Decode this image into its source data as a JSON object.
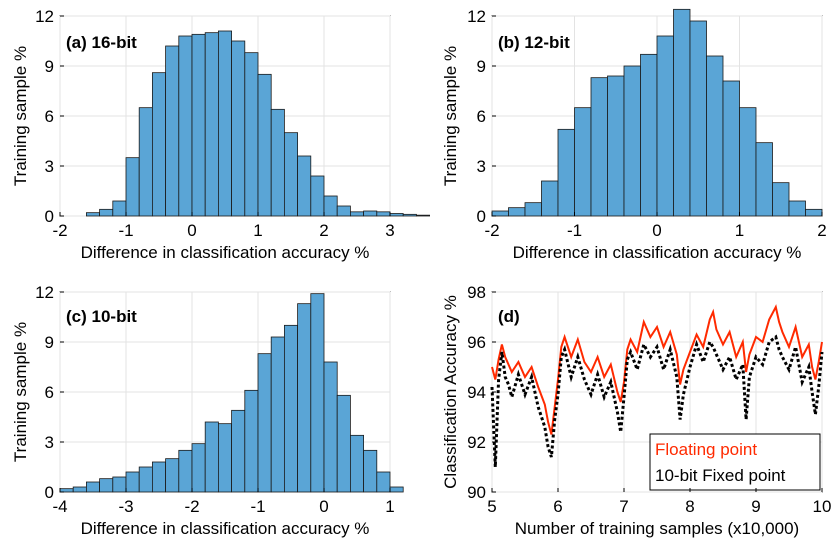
{
  "chart_data": [
    {
      "type": "bar",
      "panel_label": "(a) 16-bit",
      "xlabel": "Difference in classification accuracy %",
      "ylabel": "Training sample %",
      "xlim": [
        -2,
        3
      ],
      "ylim": [
        0,
        12
      ],
      "xticks": [
        "-2",
        "-1",
        "0",
        "1",
        "2",
        "3"
      ],
      "yticks": [
        "0",
        "3",
        "6",
        "9",
        "12"
      ],
      "bin_width": 0.2,
      "bin_start": -1.6,
      "values": [
        0.2,
        0.4,
        0.9,
        3.5,
        6.5,
        8.6,
        10.2,
        10.8,
        10.9,
        11.0,
        11.1,
        10.5,
        9.8,
        8.5,
        6.4,
        5.0,
        3.6,
        2.4,
        1.2,
        0.6,
        0.25,
        0.3,
        0.25,
        0.15,
        0.1,
        0.05
      ],
      "bar_color": "#5aa5d6",
      "grid": true
    },
    {
      "type": "bar",
      "panel_label": "(b) 12-bit",
      "xlabel": "Difference in classification accuracy %",
      "ylabel": "Training sample %",
      "xlim": [
        -2,
        2
      ],
      "ylim": [
        0,
        12
      ],
      "xticks": [
        "-2",
        "-1",
        "0",
        "1",
        "2"
      ],
      "yticks": [
        "0",
        "3",
        "6",
        "9",
        "12"
      ],
      "bin_width": 0.2,
      "bin_start": -2.0,
      "values": [
        0.3,
        0.5,
        0.8,
        2.1,
        5.2,
        6.5,
        8.3,
        8.4,
        9.0,
        9.7,
        10.8,
        12.4,
        11.7,
        9.6,
        8.1,
        6.5,
        4.4,
        2.0,
        0.9,
        0.4
      ],
      "bar_color": "#5aa5d6",
      "grid": true
    },
    {
      "type": "bar",
      "panel_label": "(c) 10-bit",
      "xlabel": "Difference in classification accuracy %",
      "ylabel": "Training sample %",
      "xlim": [
        -4,
        1
      ],
      "ylim": [
        0,
        12
      ],
      "xticks": [
        "-4",
        "-3",
        "-2",
        "-1",
        "0",
        "1"
      ],
      "yticks": [
        "0",
        "3",
        "6",
        "9",
        "12"
      ],
      "bin_width": 0.2,
      "bin_start": -4.0,
      "values": [
        0.2,
        0.3,
        0.6,
        0.8,
        0.9,
        1.2,
        1.5,
        1.8,
        2.0,
        2.5,
        2.9,
        4.2,
        4.1,
        4.9,
        6.1,
        8.3,
        9.3,
        10.0,
        11.3,
        11.9,
        7.8,
        5.8,
        3.4,
        2.5,
        1.2,
        0.3
      ],
      "bar_color": "#5aa5d6",
      "grid": true
    },
    {
      "type": "line",
      "panel_label": "(d)",
      "xlabel": "Number of training samples (x10,000)",
      "ylabel": "Classification Accuracy %",
      "xlim": [
        5,
        10
      ],
      "ylim": [
        90,
        98
      ],
      "xticks": [
        "5",
        "6",
        "7",
        "8",
        "9",
        "10"
      ],
      "yticks": [
        "90",
        "92",
        "94",
        "96",
        "98"
      ],
      "legend_position": "bottom-right",
      "grid": true,
      "series": [
        {
          "name": "Floating point",
          "color": "#ff2a00",
          "style": "solid",
          "x": [
            5.0,
            5.05,
            5.1,
            5.15,
            5.2,
            5.25,
            5.3,
            5.4,
            5.5,
            5.6,
            5.7,
            5.8,
            5.85,
            5.9,
            5.95,
            6.0,
            6.05,
            6.1,
            6.2,
            6.3,
            6.4,
            6.5,
            6.6,
            6.7,
            6.8,
            6.9,
            6.95,
            7.0,
            7.05,
            7.1,
            7.2,
            7.3,
            7.4,
            7.5,
            7.6,
            7.7,
            7.8,
            7.85,
            7.9,
            8.0,
            8.1,
            8.2,
            8.3,
            8.35,
            8.4,
            8.5,
            8.6,
            8.7,
            8.8,
            8.85,
            8.9,
            9.0,
            9.1,
            9.2,
            9.3,
            9.35,
            9.4,
            9.5,
            9.6,
            9.7,
            9.8,
            9.85,
            9.9,
            9.95,
            10.0
          ],
          "y": [
            95.0,
            94.5,
            95.3,
            95.9,
            95.4,
            95.1,
            94.8,
            95.2,
            94.6,
            95.0,
            94.2,
            93.5,
            92.8,
            92.3,
            93.4,
            94.5,
            95.8,
            96.2,
            95.4,
            96.1,
            95.2,
            94.8,
            95.4,
            94.6,
            95.1,
            94.0,
            93.6,
            94.4,
            95.7,
            96.1,
            95.6,
            96.8,
            96.2,
            96.6,
            95.8,
            96.4,
            95.5,
            94.3,
            94.9,
            95.6,
            96.3,
            95.8,
            96.9,
            97.2,
            96.5,
            95.9,
            96.4,
            95.4,
            96.0,
            94.8,
            95.5,
            96.2,
            96.0,
            96.9,
            97.4,
            96.8,
            96.4,
            95.8,
            96.6,
            95.4,
            95.9,
            95.0,
            94.5,
            95.2,
            96.0
          ]
        },
        {
          "name": "10-bit Fixed point",
          "color": "#000000",
          "style": "dotted",
          "x": [
            5.0,
            5.05,
            5.1,
            5.15,
            5.2,
            5.25,
            5.3,
            5.4,
            5.5,
            5.6,
            5.7,
            5.8,
            5.85,
            5.9,
            5.95,
            6.0,
            6.05,
            6.1,
            6.2,
            6.3,
            6.4,
            6.5,
            6.6,
            6.7,
            6.8,
            6.9,
            6.95,
            7.0,
            7.05,
            7.1,
            7.2,
            7.3,
            7.4,
            7.5,
            7.6,
            7.7,
            7.8,
            7.85,
            7.9,
            8.0,
            8.1,
            8.2,
            8.3,
            8.35,
            8.4,
            8.5,
            8.6,
            8.7,
            8.8,
            8.85,
            8.9,
            9.0,
            9.1,
            9.2,
            9.3,
            9.35,
            9.4,
            9.5,
            9.6,
            9.7,
            9.8,
            9.85,
            9.9,
            9.95,
            10.0
          ],
          "y": [
            94.2,
            91.0,
            94.5,
            95.6,
            94.6,
            94.3,
            93.8,
            94.7,
            93.9,
            94.6,
            93.4,
            92.6,
            91.8,
            91.4,
            92.9,
            93.9,
            95.4,
            95.7,
            94.6,
            95.4,
            94.5,
            93.9,
            94.7,
            93.8,
            94.4,
            93.2,
            92.4,
            93.8,
            95.3,
            95.6,
            94.9,
            95.9,
            95.4,
            95.8,
            94.9,
            95.7,
            94.6,
            92.9,
            93.9,
            95.0,
            95.9,
            95.2,
            96.0,
            95.8,
            95.5,
            94.9,
            95.4,
            94.5,
            95.1,
            92.9,
            94.6,
            95.4,
            95.1,
            96.0,
            96.2,
            95.7,
            95.4,
            94.9,
            95.8,
            94.4,
            95.0,
            94.0,
            93.1,
            94.2,
            95.6
          ]
        }
      ]
    }
  ]
}
